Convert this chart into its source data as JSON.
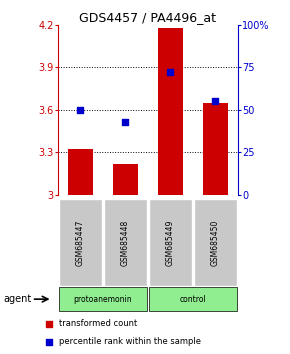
{
  "title": "GDS4457 / PA4496_at",
  "samples": [
    "GSM685447",
    "GSM685448",
    "GSM685449",
    "GSM685450"
  ],
  "bar_values": [
    3.32,
    3.22,
    4.18,
    3.65
  ],
  "percentile_values": [
    50,
    43,
    72,
    55
  ],
  "ylim_left": [
    3.0,
    4.2
  ],
  "ylim_right": [
    0,
    100
  ],
  "yticks_left": [
    3.0,
    3.3,
    3.6,
    3.9,
    4.2
  ],
  "yticks_right": [
    0,
    25,
    50,
    75,
    100
  ],
  "ytick_labels_left": [
    "3",
    "3.3",
    "3.6",
    "3.9",
    "4.2"
  ],
  "ytick_labels_right": [
    "0",
    "25",
    "50",
    "75",
    "100%"
  ],
  "bar_color": "#cc0000",
  "dot_color": "#0000cc",
  "bar_width": 0.55,
  "agent_label": "agent",
  "legend_bar_label": "transformed count",
  "legend_dot_label": "percentile rank within the sample",
  "background_color": "#ffffff",
  "sample_box_color": "#c8c8c8",
  "group1_label": "protoanemonin",
  "group2_label": "control",
  "group_color": "#90ee90",
  "group1_samples": [
    0,
    1
  ],
  "group2_samples": [
    2,
    3
  ]
}
